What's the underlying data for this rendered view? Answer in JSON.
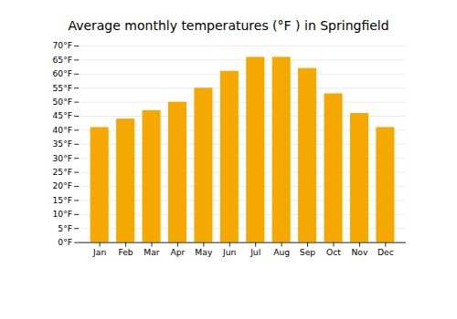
{
  "chart_data": {
    "type": "bar",
    "title": "Average monthly temperatures (°F ) in Springfield",
    "categories": [
      "Jan",
      "Feb",
      "Mar",
      "Apr",
      "May",
      "Jun",
      "Jul",
      "Aug",
      "Sep",
      "Oct",
      "Nov",
      "Dec"
    ],
    "values": [
      41,
      44,
      47,
      50,
      55,
      61,
      66,
      66,
      62,
      53,
      46,
      41
    ],
    "color": "#F5A800",
    "ylim": [
      0,
      70
    ],
    "yticks": [
      {
        "value": 0,
        "label": "0°F"
      },
      {
        "value": 5,
        "label": "5°F"
      },
      {
        "value": 10,
        "label": "10°F"
      },
      {
        "value": 15,
        "label": "15°F"
      },
      {
        "value": 20,
        "label": "20°F"
      },
      {
        "value": 25,
        "label": "25°F"
      },
      {
        "value": 30,
        "label": "30°F"
      },
      {
        "value": 35,
        "label": "35°F"
      },
      {
        "value": 40,
        "label": "40°F"
      },
      {
        "value": 45,
        "label": "45°F"
      },
      {
        "value": 50,
        "label": "50°F"
      },
      {
        "value": 55,
        "label": "55°F"
      },
      {
        "value": 60,
        "label": "60°F"
      },
      {
        "value": 65,
        "label": "65°F"
      },
      {
        "value": 70,
        "label": "70°F"
      }
    ],
    "grid": true
  }
}
